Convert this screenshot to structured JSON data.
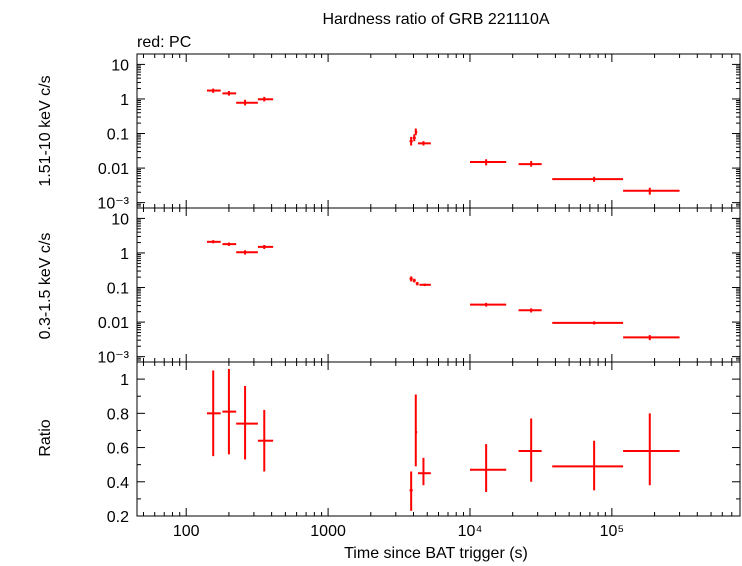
{
  "title": "Hardness ratio of GRB 221110A",
  "subtitle": "red: PC",
  "colors": {
    "data": "#ff0000",
    "frame": "#000000",
    "background": "#ffffff"
  },
  "chart_data": [
    {
      "type": "scatter",
      "panel": "hard",
      "ylabel": "1.51-10 keV c/s",
      "yscale": "log",
      "ylim": [
        0.0007,
        20
      ],
      "yticks": [
        {
          "value": 10,
          "label": "10"
        },
        {
          "value": 1,
          "label": "1"
        },
        {
          "value": 0.1,
          "label": "0.1"
        },
        {
          "value": 0.01,
          "label": "0.01"
        },
        {
          "value": 0.001,
          "label": "10⁻³"
        }
      ],
      "points": [
        {
          "x": 155,
          "xlo": 140,
          "xhi": 175,
          "y": 1.75,
          "ylo": 1.5,
          "yhi": 2.0
        },
        {
          "x": 200,
          "xlo": 180,
          "xhi": 225,
          "y": 1.45,
          "ylo": 1.25,
          "yhi": 1.7
        },
        {
          "x": 260,
          "xlo": 225,
          "xhi": 320,
          "y": 0.78,
          "ylo": 0.65,
          "yhi": 0.95
        },
        {
          "x": 355,
          "xlo": 320,
          "xhi": 410,
          "y": 0.98,
          "ylo": 0.85,
          "yhi": 1.15
        },
        {
          "x": 3850,
          "xlo": 3750,
          "xhi": 3950,
          "y": 0.06,
          "ylo": 0.045,
          "yhi": 0.08
        },
        {
          "x": 4050,
          "xlo": 3950,
          "xhi": 4150,
          "y": 0.075,
          "ylo": 0.06,
          "yhi": 0.095
        },
        {
          "x": 4150,
          "xlo": 4100,
          "xhi": 4250,
          "y": 0.11,
          "ylo": 0.09,
          "yhi": 0.14
        },
        {
          "x": 4700,
          "xlo": 4300,
          "xhi": 5300,
          "y": 0.052,
          "ylo": 0.045,
          "yhi": 0.06
        },
        {
          "x": 13000,
          "xlo": 10000,
          "xhi": 18000,
          "y": 0.015,
          "ylo": 0.012,
          "yhi": 0.018
        },
        {
          "x": 27000,
          "xlo": 22000,
          "xhi": 32000,
          "y": 0.013,
          "ylo": 0.011,
          "yhi": 0.016
        },
        {
          "x": 75000,
          "xlo": 38000,
          "xhi": 120000,
          "y": 0.0048,
          "ylo": 0.004,
          "yhi": 0.0056
        },
        {
          "x": 185000,
          "xlo": 120000,
          "xhi": 300000,
          "y": 0.0022,
          "ylo": 0.0017,
          "yhi": 0.0027
        }
      ]
    },
    {
      "type": "scatter",
      "panel": "soft",
      "ylabel": "0.3-1.5 keV c/s",
      "yscale": "log",
      "ylim": [
        0.0007,
        20
      ],
      "yticks": [
        {
          "value": 10,
          "label": "10"
        },
        {
          "value": 1,
          "label": "1"
        },
        {
          "value": 0.1,
          "label": "0.1"
        },
        {
          "value": 0.01,
          "label": "0.01"
        },
        {
          "value": 0.001,
          "label": "10⁻³"
        }
      ],
      "points": [
        {
          "x": 155,
          "xlo": 140,
          "xhi": 175,
          "y": 2.1,
          "ylo": 1.9,
          "yhi": 2.35
        },
        {
          "x": 200,
          "xlo": 180,
          "xhi": 225,
          "y": 1.8,
          "ylo": 1.6,
          "yhi": 2.0
        },
        {
          "x": 260,
          "xlo": 225,
          "xhi": 320,
          "y": 1.05,
          "ylo": 0.9,
          "yhi": 1.2
        },
        {
          "x": 355,
          "xlo": 320,
          "xhi": 410,
          "y": 1.5,
          "ylo": 1.3,
          "yhi": 1.7
        },
        {
          "x": 3850,
          "xlo": 3750,
          "xhi": 3950,
          "y": 0.18,
          "ylo": 0.15,
          "yhi": 0.21
        },
        {
          "x": 4050,
          "xlo": 3950,
          "xhi": 4150,
          "y": 0.16,
          "ylo": 0.14,
          "yhi": 0.18
        },
        {
          "x": 4250,
          "xlo": 4150,
          "xhi": 4350,
          "y": 0.13,
          "ylo": 0.115,
          "yhi": 0.145
        },
        {
          "x": 4800,
          "xlo": 4400,
          "xhi": 5300,
          "y": 0.12,
          "ylo": 0.11,
          "yhi": 0.13
        },
        {
          "x": 13000,
          "xlo": 10000,
          "xhi": 18000,
          "y": 0.032,
          "ylo": 0.028,
          "yhi": 0.036
        },
        {
          "x": 27000,
          "xlo": 22000,
          "xhi": 32000,
          "y": 0.022,
          "ylo": 0.019,
          "yhi": 0.025
        },
        {
          "x": 75000,
          "xlo": 38000,
          "xhi": 120000,
          "y": 0.0095,
          "ylo": 0.0085,
          "yhi": 0.0105
        },
        {
          "x": 185000,
          "xlo": 120000,
          "xhi": 300000,
          "y": 0.0036,
          "ylo": 0.003,
          "yhi": 0.0042
        }
      ]
    },
    {
      "type": "scatter",
      "panel": "ratio",
      "ylabel": "Ratio",
      "xlabel": "Time since BAT trigger (s)",
      "xscale": "log",
      "xlim": [
        45,
        800000
      ],
      "xticks": [
        {
          "value": 100,
          "label": "100"
        },
        {
          "value": 1000,
          "label": "1000"
        },
        {
          "value": 10000,
          "label": "10⁴"
        },
        {
          "value": 100000,
          "label": "10⁵"
        }
      ],
      "yscale": "linear",
      "ylim": [
        0.2,
        1.1
      ],
      "yticks": [
        {
          "value": 0.2,
          "label": "0.2"
        },
        {
          "value": 0.4,
          "label": "0.4"
        },
        {
          "value": 0.6,
          "label": "0.6"
        },
        {
          "value": 0.8,
          "label": "0.8"
        },
        {
          "value": 1,
          "label": "1"
        }
      ],
      "points": [
        {
          "x": 155,
          "xlo": 140,
          "xhi": 175,
          "y": 0.8,
          "ylo": 0.55,
          "yhi": 1.05
        },
        {
          "x": 200,
          "xlo": 180,
          "xhi": 225,
          "y": 0.81,
          "ylo": 0.56,
          "yhi": 1.06
        },
        {
          "x": 260,
          "xlo": 225,
          "xhi": 320,
          "y": 0.74,
          "ylo": 0.53,
          "yhi": 0.96
        },
        {
          "x": 355,
          "xlo": 320,
          "xhi": 410,
          "y": 0.64,
          "ylo": 0.46,
          "yhi": 0.82
        },
        {
          "x": 3850,
          "xlo": 3750,
          "xhi": 3950,
          "y": 0.35,
          "ylo": 0.23,
          "yhi": 0.46
        },
        {
          "x": 4150,
          "xlo": 4100,
          "xhi": 4250,
          "y": 0.69,
          "ylo": 0.49,
          "yhi": 0.91
        },
        {
          "x": 4700,
          "xlo": 4300,
          "xhi": 5300,
          "y": 0.45,
          "ylo": 0.38,
          "yhi": 0.54
        },
        {
          "x": 13000,
          "xlo": 10000,
          "xhi": 18000,
          "y": 0.47,
          "ylo": 0.34,
          "yhi": 0.62
        },
        {
          "x": 27000,
          "xlo": 22000,
          "xhi": 32000,
          "y": 0.58,
          "ylo": 0.4,
          "yhi": 0.77
        },
        {
          "x": 75000,
          "xlo": 38000,
          "xhi": 120000,
          "y": 0.49,
          "ylo": 0.35,
          "yhi": 0.64
        },
        {
          "x": 185000,
          "xlo": 120000,
          "xhi": 300000,
          "y": 0.58,
          "ylo": 0.38,
          "yhi": 0.8
        }
      ]
    }
  ]
}
